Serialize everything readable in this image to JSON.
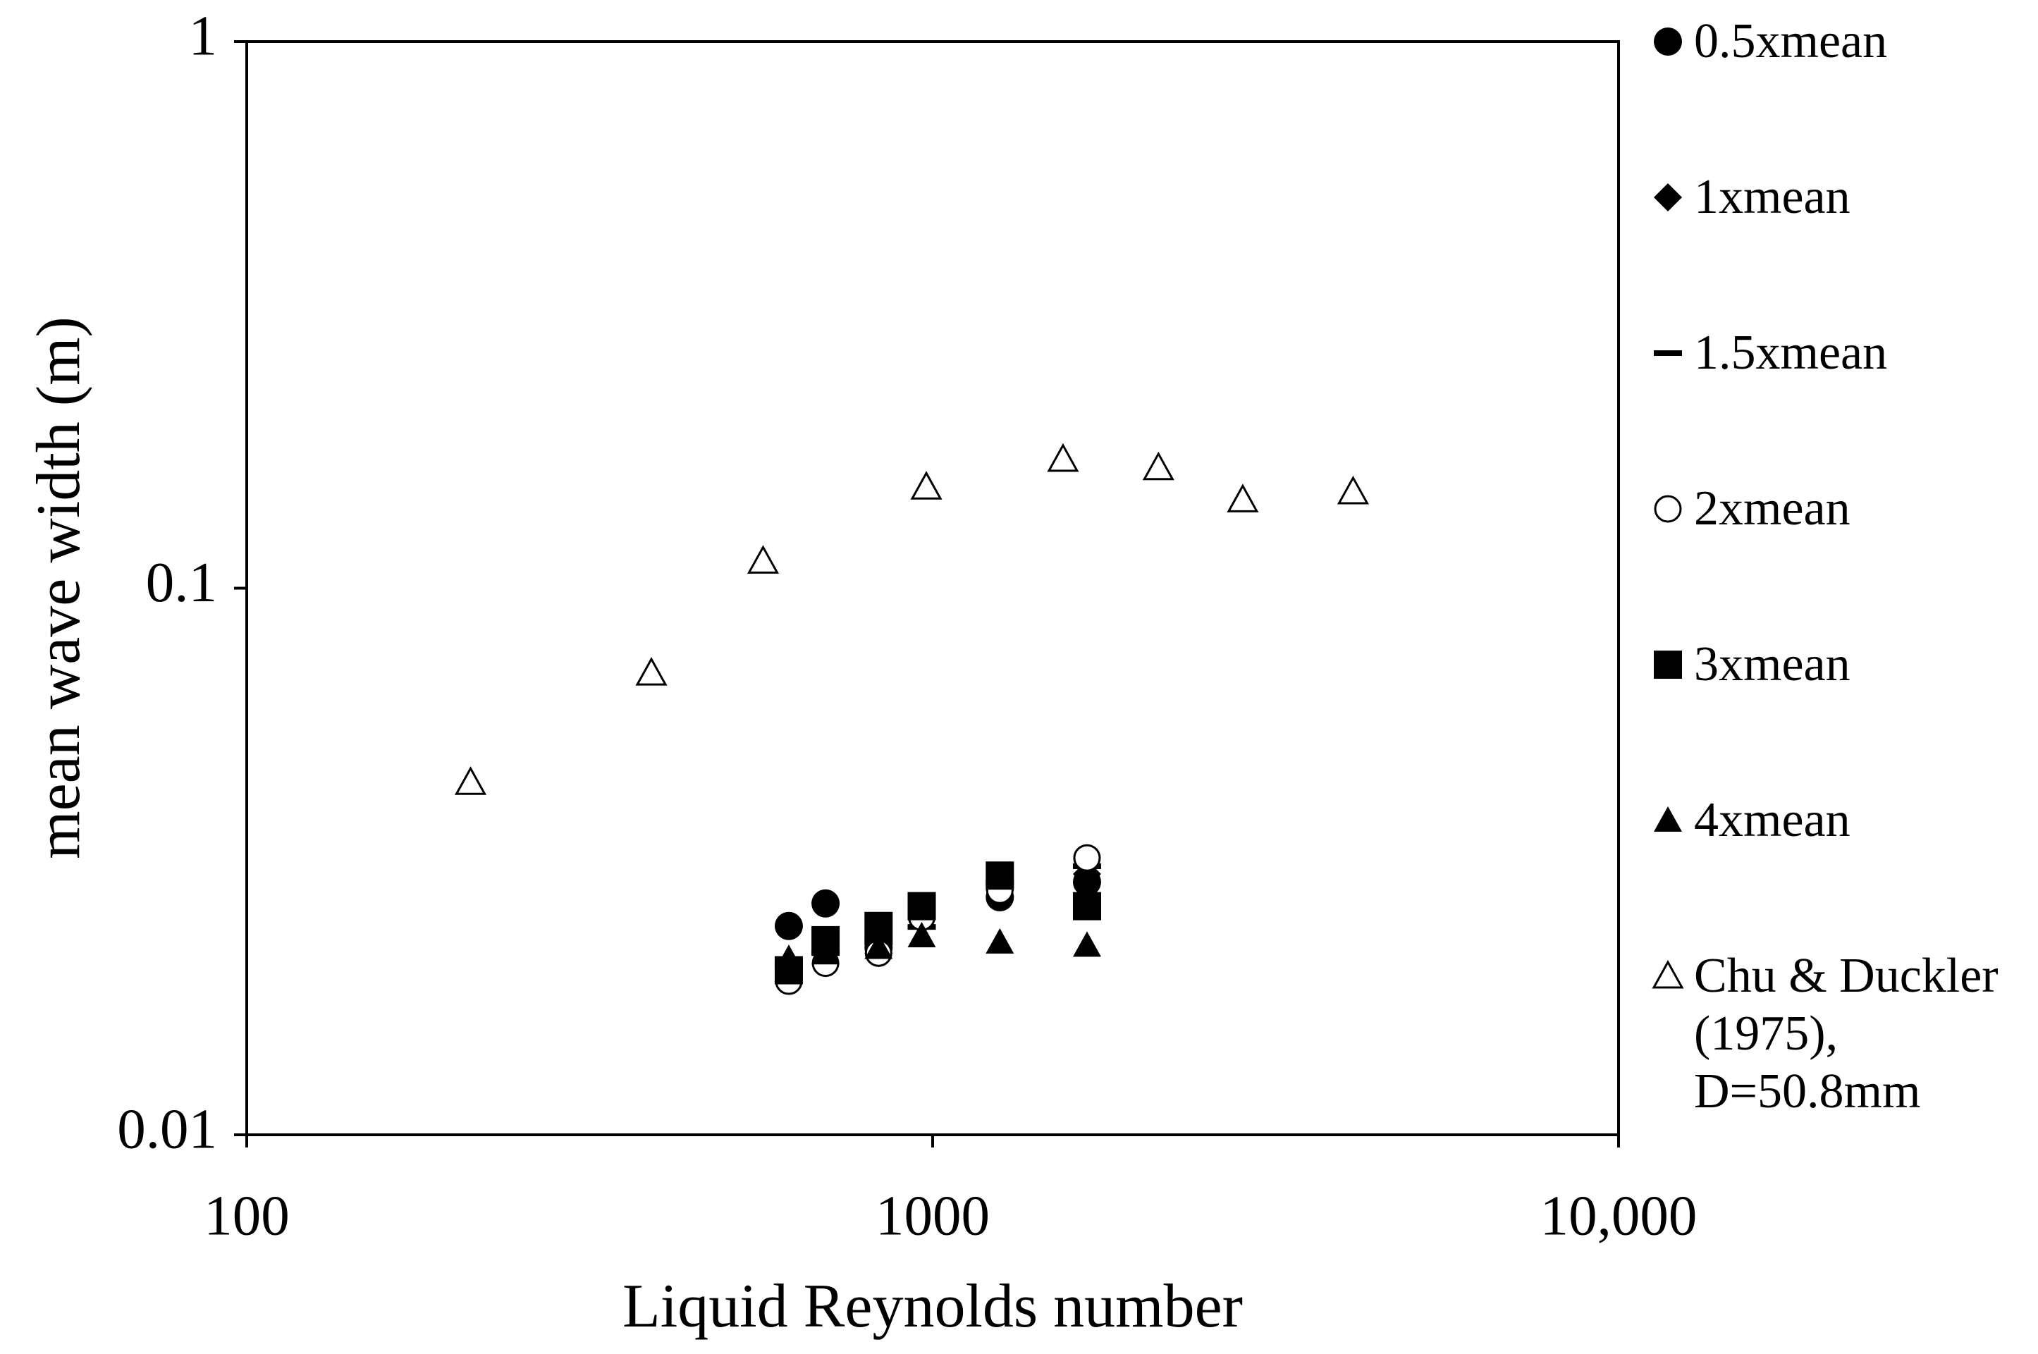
{
  "chart_data": {
    "type": "scatter",
    "x_label": "Liquid Reynolds number",
    "y_label": "mean wave width (m)",
    "xscale": "log",
    "yscale": "log",
    "xlim": [
      100,
      10000
    ],
    "xticks": [
      100,
      1000,
      {
        "value": 10000,
        "label": "10,000"
      }
    ],
    "ylim": [
      0.01,
      1
    ],
    "yticks": [
      0.01,
      0.1,
      1
    ],
    "legend": "right",
    "series": [
      {
        "name": "0.5xmean",
        "marker": "circle-filled",
        "color": "#000000",
        "x": [
          617,
          698,
          834,
          964,
          1253,
          1679
        ],
        "values": [
          0.0241,
          0.0265,
          0.022,
          0.0257,
          0.0272,
          0.029
        ]
      },
      {
        "name": "1xmean",
        "marker": "diamond-filled",
        "color": "#000000",
        "x": [
          617,
          698,
          834,
          964,
          1253,
          1679
        ],
        "values": [
          0.02,
          0.022,
          0.0215,
          0.025,
          0.028,
          0.03
        ]
      },
      {
        "name": "1.5xmean",
        "marker": "dash",
        "color": "#000000",
        "x": [
          617,
          698,
          834,
          964,
          1253,
          1679
        ],
        "values": [
          0.0205,
          0.0215,
          0.0225,
          0.024,
          0.029,
          0.031
        ]
      },
      {
        "name": "2xmean",
        "marker": "circle-open",
        "color": "#000000",
        "x": [
          617,
          698,
          834,
          964,
          1253,
          1679
        ],
        "values": [
          0.0191,
          0.0206,
          0.0215,
          0.025,
          0.028,
          0.0321
        ]
      },
      {
        "name": "3xmean",
        "marker": "square-filled",
        "color": "#000000",
        "x": [
          617,
          698,
          834,
          964,
          1253,
          1679
        ],
        "values": [
          0.02,
          0.0227,
          0.0241,
          0.0262,
          0.0298,
          0.0262
        ]
      },
      {
        "name": "4xmean",
        "marker": "triangle-filled",
        "color": "#000000",
        "x": [
          617,
          698,
          834,
          964,
          1253,
          1679
        ],
        "values": [
          0.021,
          0.0215,
          0.022,
          0.0231,
          0.0225,
          0.0222
        ]
      },
      {
        "name": "Chu & Duckler (1975), D=50.8mm",
        "marker": "triangle-open",
        "color": "#000000",
        "x": [
          212,
          389,
          566,
          979,
          1549,
          2134,
          2832,
          4102
        ],
        "values": [
          0.0441,
          0.0699,
          0.112,
          0.153,
          0.172,
          0.166,
          0.145,
          0.15
        ]
      }
    ]
  }
}
